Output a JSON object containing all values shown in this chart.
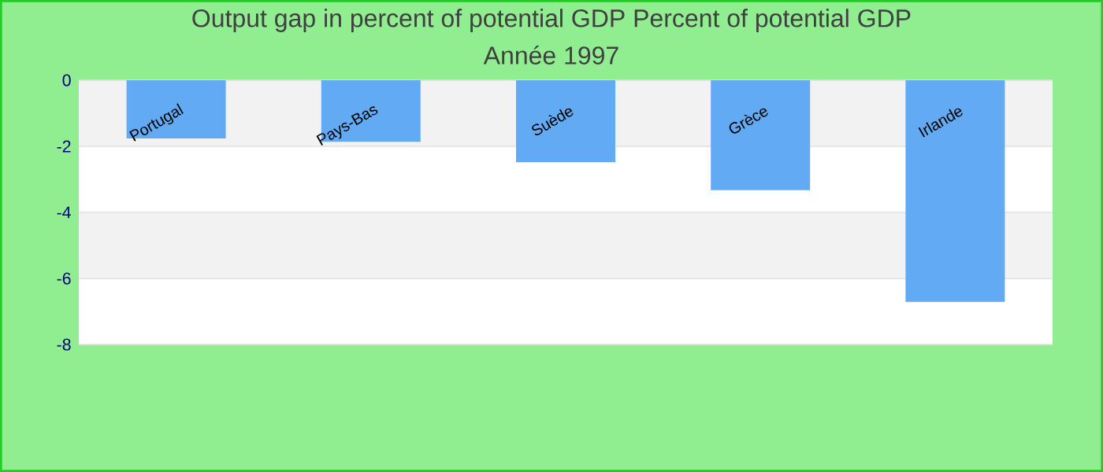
{
  "chart_data": {
    "type": "bar",
    "title": "Output gap in percent of potential GDP  Percent of potential GDP",
    "subtitle": "Année 1997",
    "categories": [
      "Portugal",
      "Pays-Bas",
      "Suède",
      "Grèce",
      "Irlande"
    ],
    "values": [
      -1.76,
      -1.86,
      -2.48,
      -3.33,
      -6.71
    ],
    "color": "#63aaf5",
    "ylim": [
      -8,
      0
    ],
    "yticks": [
      -8,
      -6,
      -4,
      -2,
      0
    ],
    "grid": "y"
  }
}
